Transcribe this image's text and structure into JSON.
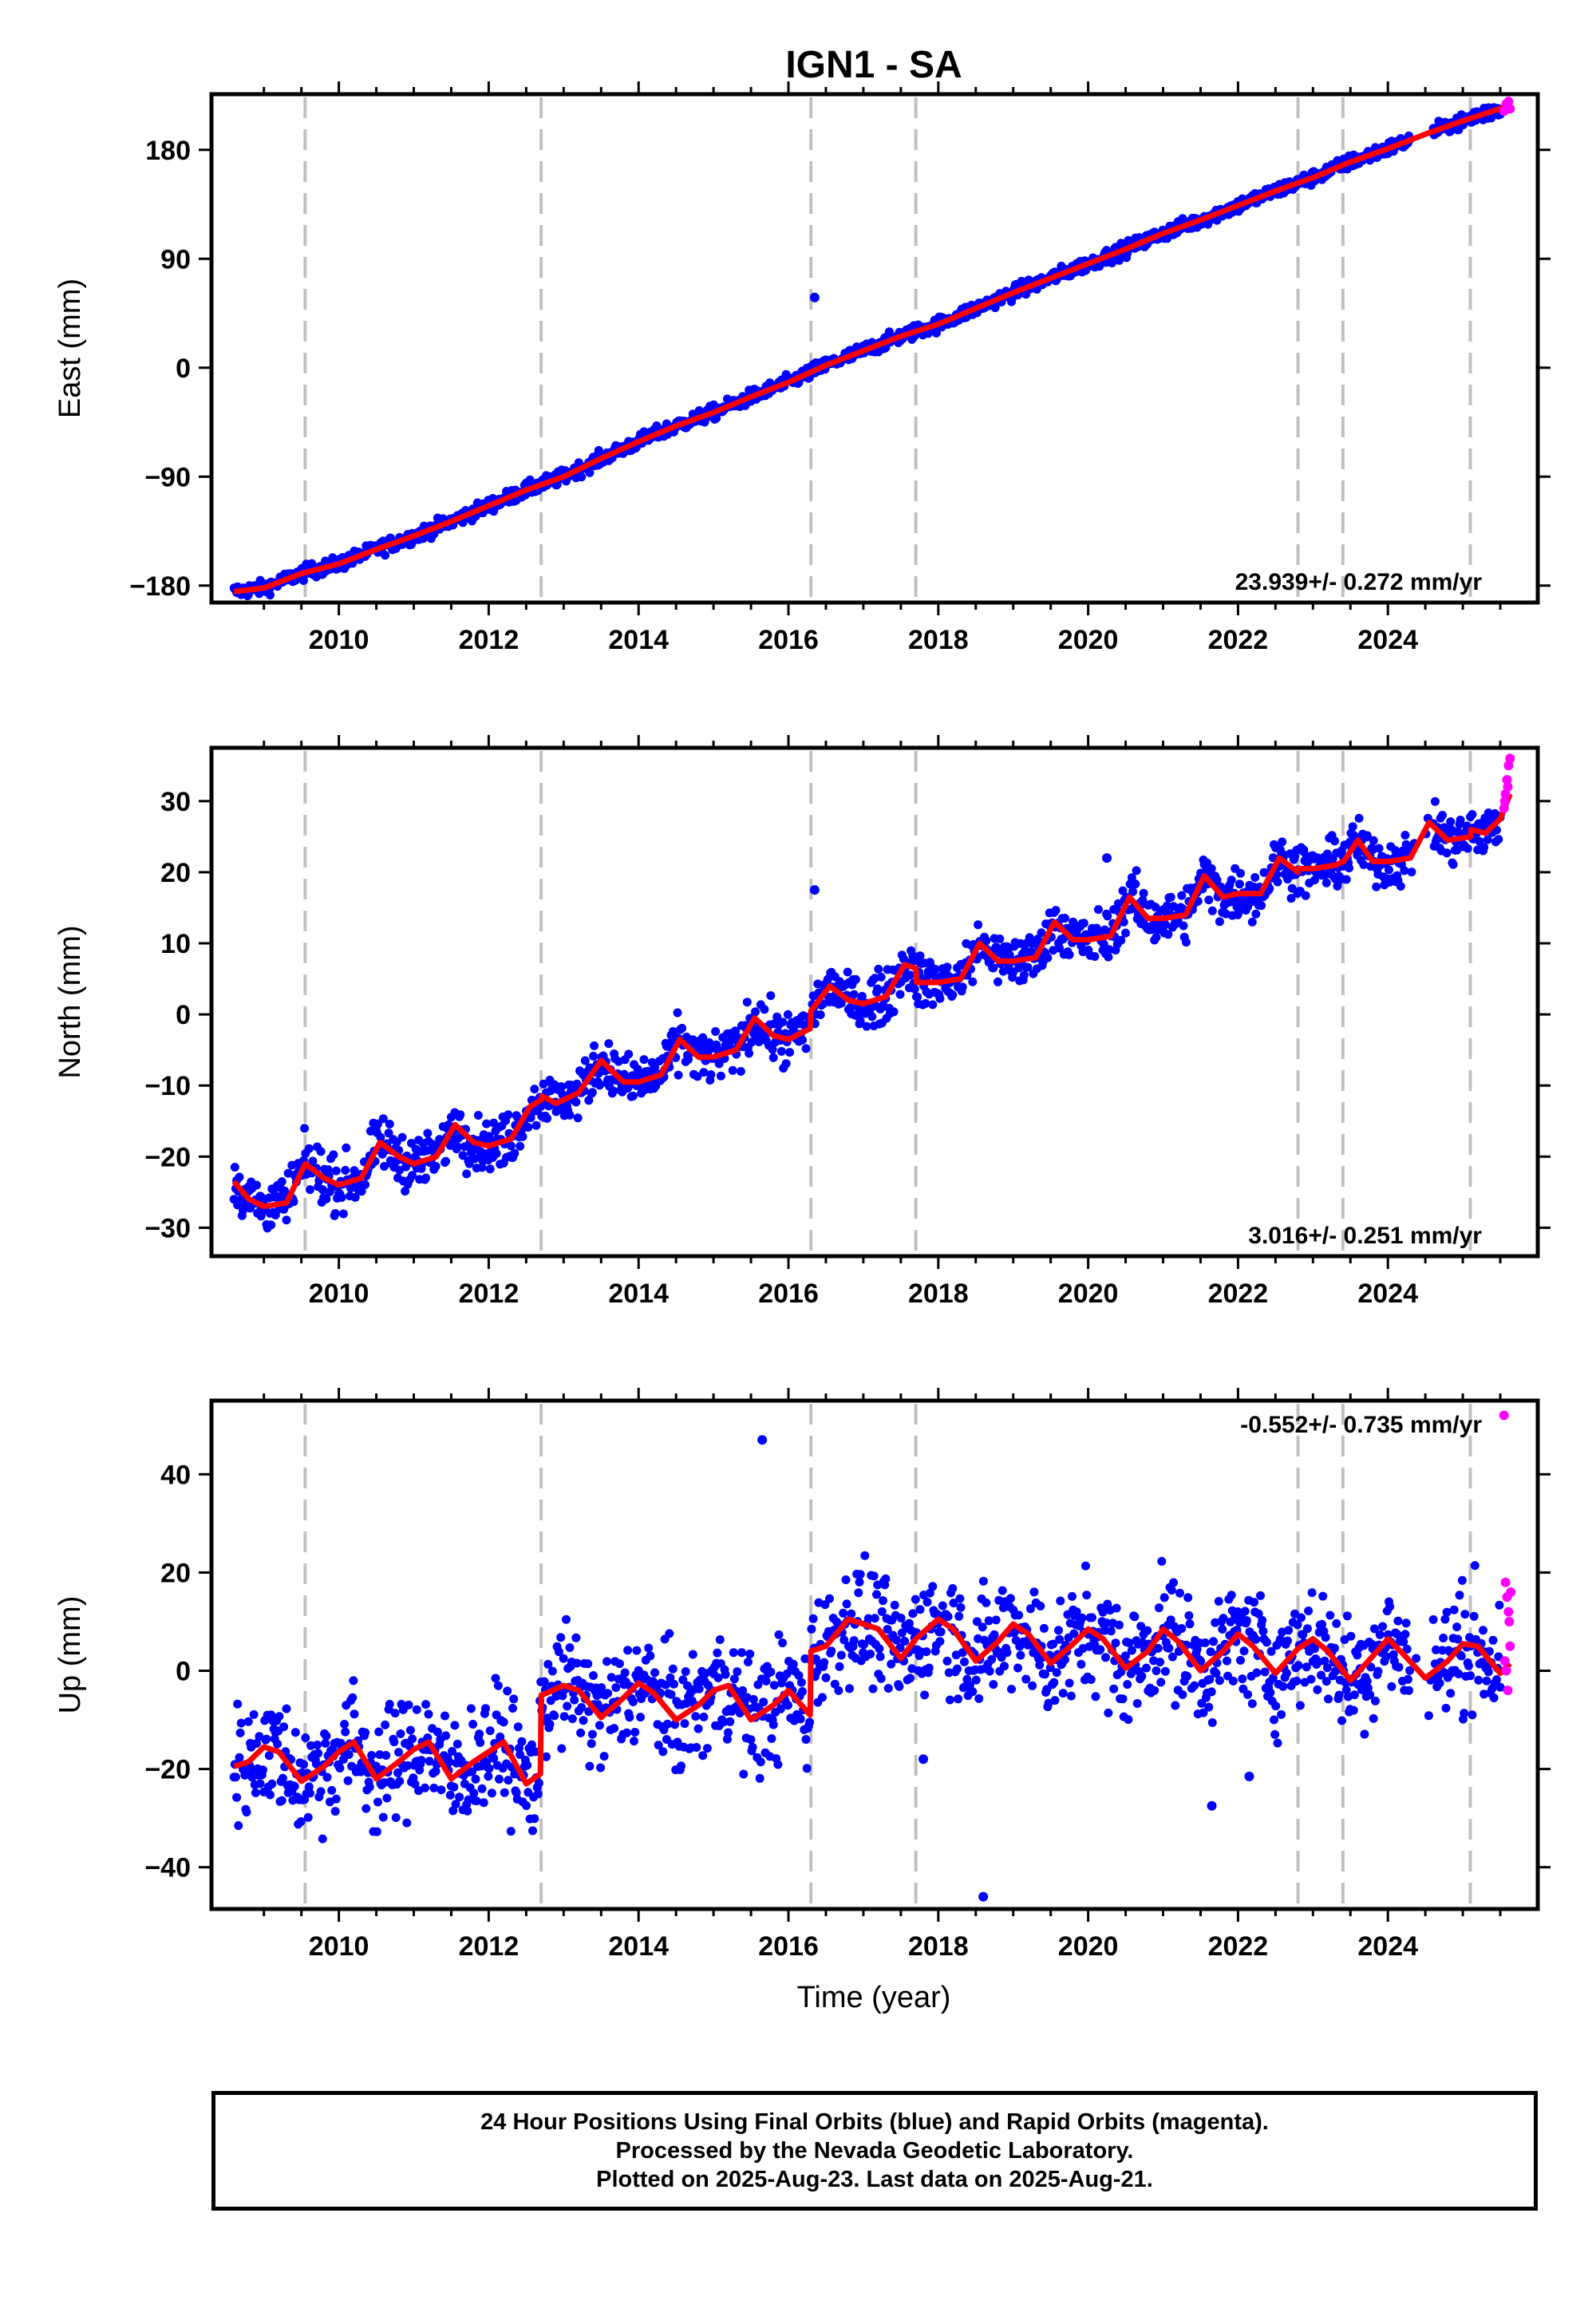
{
  "title": "IGN1 - SA",
  "colors": {
    "final": "#0000ff",
    "rapid": "#ff00ff",
    "fit": "#ff0000",
    "steps": "#c0c0c0"
  },
  "xaxis": {
    "label": "Time (year)",
    "range": [
      2008.3,
      2026.0
    ],
    "tick_labels": [
      "2010",
      "2012",
      "2014",
      "2016",
      "2018",
      "2020",
      "2022",
      "2024"
    ]
  },
  "footer": {
    "line1": "24 Hour Positions Using Final Orbits (blue) and Rapid Orbits (magenta).",
    "line2": "Processed by the Nevada Geodetic Laboratory.",
    "line3": "Plotted on 2025-Aug-23. Last data on 2025-Aug-21."
  },
  "chart_data": [
    {
      "type": "scatter",
      "ylabel": "East (mm)",
      "rate": "23.939+/- 0.272 mm/yr",
      "rate_position": "bottom-right",
      "xlim": [
        2008.3,
        2026.0
      ],
      "ylim": [
        -194,
        226
      ],
      "ytick_labels": [
        "−180",
        "−90",
        "0",
        "90",
        "180"
      ],
      "ytick_values": [
        -180,
        -90,
        0,
        90,
        180
      ],
      "step_epochs": [
        2009.55,
        2012.7,
        2016.3,
        2017.7,
        2022.8,
        2023.4,
        2025.1
      ],
      "fit_series": {
        "x": [
          2008.6,
          2009.0,
          2009.5,
          2010.0,
          2010.5,
          2011.0,
          2011.5,
          2012.0,
          2012.5,
          2013.0,
          2013.5,
          2014.0,
          2014.5,
          2015.0,
          2015.5,
          2016.0,
          2016.5,
          2017.0,
          2017.5,
          2018.0,
          2018.5,
          2019.0,
          2019.5,
          2020.0,
          2020.5,
          2021.0,
          2021.5,
          2022.0,
          2022.5,
          2023.0,
          2023.5,
          2024.0,
          2024.5,
          2025.0,
          2025.5,
          2025.63
        ],
        "y": [
          -185,
          -182,
          -170,
          -162,
          -150,
          -139,
          -127,
          -114,
          -101,
          -90,
          -75,
          -61,
          -48,
          -37,
          -24,
          -12,
          2,
          14,
          26,
          36,
          49,
          62,
          74,
          86,
          98,
          111,
          122,
          134,
          146,
          157,
          170,
          181,
          193,
          204,
          214,
          218
        ]
      },
      "rapid_series": {
        "x": [
          2025.55,
          2025.58,
          2025.61,
          2025.63
        ],
        "y": [
          212,
          218,
          220,
          214
        ]
      },
      "outliers": {
        "x": [
          2016.35
        ],
        "y": [
          58
        ]
      },
      "final_series_model": {
        "x_start": 2008.6,
        "x_end": 2025.5,
        "noise_mm": 3,
        "gaps": [
          [
            2024.3,
            2024.6
          ]
        ]
      }
    },
    {
      "type": "scatter",
      "ylabel": "North (mm)",
      "rate": "3.016+/- 0.251 mm/yr",
      "rate_position": "bottom-right",
      "xlim": [
        2008.3,
        2026.0
      ],
      "ylim": [
        -34,
        37.5
      ],
      "ytick_labels": [
        "−30",
        "−20",
        "−10",
        "0",
        "10",
        "20",
        "30"
      ],
      "ytick_values": [
        -30,
        -20,
        -10,
        0,
        10,
        20,
        30
      ],
      "step_epochs": [
        2009.55,
        2012.7,
        2016.3,
        2017.7,
        2022.8,
        2023.4,
        2025.1
      ],
      "fit_series": {
        "x": [
          2008.6,
          2008.8,
          2009.0,
          2009.3,
          2009.55,
          2009.8,
          2010.0,
          2010.3,
          2010.55,
          2010.8,
          2011.0,
          2011.3,
          2011.55,
          2011.8,
          2012.0,
          2012.3,
          2012.55,
          2012.7,
          2012.71,
          2012.9,
          2013.2,
          2013.5,
          2013.8,
          2014.0,
          2014.3,
          2014.55,
          2014.8,
          2015.0,
          2015.3,
          2015.55,
          2015.8,
          2016.0,
          2016.29,
          2016.3,
          2016.55,
          2016.8,
          2017.0,
          2017.3,
          2017.55,
          2017.7,
          2017.71,
          2018.0,
          2018.3,
          2018.55,
          2018.8,
          2019.0,
          2019.3,
          2019.55,
          2019.8,
          2020.0,
          2020.3,
          2020.55,
          2020.8,
          2021.0,
          2021.3,
          2021.55,
          2021.8,
          2022.0,
          2022.3,
          2022.55,
          2022.8,
          2022.81,
          2023.0,
          2023.3,
          2023.4,
          2023.41,
          2023.6,
          2023.8,
          2024.0,
          2024.3,
          2024.55,
          2024.8,
          2025.1,
          2025.11,
          2025.3,
          2025.5,
          2025.63
        ],
        "y": [
          -23.5,
          -26.0,
          -27.0,
          -26.5,
          -21.0,
          -23.0,
          -24.0,
          -23.0,
          -18.0,
          -20.0,
          -21.0,
          -20.0,
          -15.5,
          -18.0,
          -18.5,
          -17.5,
          -13.0,
          -12.0,
          -11.5,
          -12.5,
          -11.0,
          -6.5,
          -9.5,
          -9.5,
          -8.5,
          -3.5,
          -6.0,
          -6.0,
          -5.0,
          -0.5,
          -3.0,
          -3.5,
          -2.0,
          0.5,
          4.0,
          2.0,
          1.5,
          2.5,
          7.0,
          6.5,
          4.5,
          4.5,
          5.0,
          10.0,
          7.5,
          7.5,
          8.0,
          13.0,
          10.5,
          10.5,
          11.0,
          16.5,
          13.5,
          13.5,
          14.0,
          19.5,
          16.5,
          17.0,
          17.0,
          22.0,
          20.0,
          20.5,
          20.5,
          21.0,
          21.5,
          21.5,
          24.5,
          21.5,
          21.5,
          22.0,
          27.0,
          24.5,
          25.0,
          26.0,
          25.5,
          27.5,
          31.0
        ]
      },
      "rapid_series": {
        "x": [
          2025.55,
          2025.57,
          2025.59,
          2025.61,
          2025.63,
          2025.56,
          2025.6
        ],
        "y": [
          29,
          31,
          33,
          35,
          36,
          30,
          32
        ]
      },
      "outliers": {
        "x": [
          2016.35,
          2020.25
        ],
        "y": [
          17.5,
          22.0
        ]
      },
      "final_series_model": {
        "x_start": 2008.6,
        "x_end": 2025.5,
        "noise_mm": 1.8,
        "gaps": [
          [
            2024.3,
            2024.6
          ]
        ]
      }
    },
    {
      "type": "scatter",
      "ylabel": "Up (mm)",
      "rate": "-0.552+/- 0.735 mm/yr",
      "rate_position": "top-right",
      "xlim": [
        2008.3,
        2026.0
      ],
      "ylim": [
        -48.5,
        55
      ],
      "ytick_labels": [
        "−40",
        "−20",
        "0",
        "20",
        "40"
      ],
      "ytick_values": [
        -40,
        -20,
        0,
        20,
        40
      ],
      "step_epochs": [
        2009.55,
        2012.7,
        2016.3,
        2017.7,
        2022.8,
        2023.4,
        2025.1
      ],
      "fit_series": {
        "x": [
          2008.6,
          2008.8,
          2009.0,
          2009.2,
          2009.5,
          2009.8,
          2010.0,
          2010.2,
          2010.5,
          2010.8,
          2011.0,
          2011.2,
          2011.5,
          2011.8,
          2012.0,
          2012.2,
          2012.5,
          2012.69,
          2012.7,
          2013.0,
          2013.2,
          2013.5,
          2013.8,
          2014.0,
          2014.2,
          2014.5,
          2014.8,
          2015.0,
          2015.2,
          2015.5,
          2015.8,
          2016.0,
          2016.29,
          2016.3,
          2016.5,
          2016.8,
          2017.0,
          2017.2,
          2017.5,
          2017.7,
          2018.0,
          2018.2,
          2018.5,
          2018.8,
          2019.0,
          2019.2,
          2019.5,
          2019.8,
          2020.0,
          2020.2,
          2020.5,
          2020.8,
          2021.0,
          2021.2,
          2021.5,
          2021.8,
          2022.0,
          2022.2,
          2022.5,
          2022.8,
          2023.0,
          2023.2,
          2023.5,
          2023.8,
          2024.0,
          2024.2,
          2024.5,
          2024.8,
          2025.0,
          2025.2,
          2025.5,
          2025.63
        ],
        "y": [
          -19.5,
          -18.5,
          -15.5,
          -16.5,
          -22.5,
          -19.5,
          -16.5,
          -14.5,
          -22.0,
          -18.5,
          -16.0,
          -14.5,
          -22.0,
          -18.5,
          -16.5,
          -14.5,
          -23.0,
          -21.0,
          -5.0,
          -3.0,
          -4.0,
          -9.5,
          -5.5,
          -2.5,
          -4.5,
          -10.0,
          -7.0,
          -4.0,
          -3.0,
          -10.0,
          -7.0,
          -4.0,
          -9.0,
          4.0,
          5.0,
          10.5,
          9.5,
          8.5,
          2.5,
          6.5,
          10.5,
          8.5,
          2.0,
          6.0,
          9.5,
          7.5,
          1.5,
          5.5,
          8.5,
          6.5,
          0.5,
          4.0,
          8.5,
          6.0,
          0.0,
          4.0,
          7.5,
          5.0,
          -0.5,
          4.5,
          6.5,
          4.0,
          -2.0,
          3.0,
          6.5,
          3.5,
          -1.5,
          2.0,
          5.5,
          5.0,
          -0.5,
          1.5
        ]
      },
      "rapid_series": {
        "x": [
          2025.55,
          2025.57,
          2025.59,
          2025.61,
          2025.63,
          2025.56,
          2025.58,
          2025.6,
          2025.62,
          2025.64
        ],
        "y": [
          52,
          18,
          15,
          12,
          5,
          2,
          0,
          -4,
          10,
          16
        ]
      },
      "outliers": {
        "x": [
          2015.65,
          2018.6,
          2021.65,
          2022.15,
          2017.8
        ],
        "y": [
          47,
          -46,
          -27.5,
          -21.5,
          -18
        ]
      },
      "final_series_model": {
        "x_start": 2008.6,
        "x_end": 2025.5,
        "noise_mm": 6,
        "gaps": [
          [
            2024.3,
            2024.6
          ]
        ]
      }
    }
  ]
}
